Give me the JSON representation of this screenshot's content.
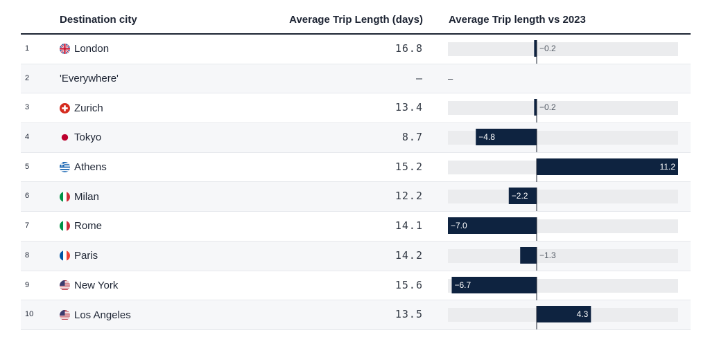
{
  "headers": {
    "city": "Destination city",
    "avg": "Average Trip Length (days)",
    "vs": "Average Trip length vs 2023"
  },
  "colors": {
    "bar": "#0e2340",
    "track": "#ebecee",
    "axis": "#1d2433"
  },
  "rows": [
    {
      "rank": "1",
      "city": "London",
      "flag": "uk-flag-icon",
      "avg": "16.8",
      "vs_label": "−0.2"
    },
    {
      "rank": "2",
      "city": "'Everywhere'",
      "flag": "",
      "avg": "–",
      "vs_label": "–"
    },
    {
      "rank": "3",
      "city": "Zurich",
      "flag": "swiss-flag-icon",
      "avg": "13.4",
      "vs_label": "−0.2"
    },
    {
      "rank": "4",
      "city": "Tokyo",
      "flag": "japan-flag-icon",
      "avg": "8.7",
      "vs_label": "−4.8"
    },
    {
      "rank": "5",
      "city": "Athens",
      "flag": "greece-flag-icon",
      "avg": "15.2",
      "vs_label": "11.2"
    },
    {
      "rank": "6",
      "city": "Milan",
      "flag": "italy-flag-icon",
      "avg": "12.2",
      "vs_label": "−2.2"
    },
    {
      "rank": "7",
      "city": "Rome",
      "flag": "italy-flag-icon",
      "avg": "14.1",
      "vs_label": "−7.0"
    },
    {
      "rank": "8",
      "city": "Paris",
      "flag": "france-flag-icon",
      "avg": "14.2",
      "vs_label": "−1.3"
    },
    {
      "rank": "9",
      "city": "New York",
      "flag": "usa-flag-icon",
      "avg": "15.6",
      "vs_label": "−6.7"
    },
    {
      "rank": "10",
      "city": "Los Angeles",
      "flag": "usa-flag-icon",
      "avg": "13.5",
      "vs_label": "4.3"
    }
  ],
  "chart_data": {
    "type": "bar",
    "orientation": "horizontal",
    "categories": [
      "London",
      "'Everywhere'",
      "Zurich",
      "Tokyo",
      "Athens",
      "Milan",
      "Rome",
      "Paris",
      "New York",
      "Los Angeles"
    ],
    "values": [
      -0.2,
      null,
      -0.2,
      -4.8,
      11.2,
      -2.2,
      -7.0,
      -1.3,
      -6.7,
      4.3
    ],
    "title": "Average Trip length vs 2023",
    "xlim": [
      -7.0,
      11.2
    ]
  }
}
